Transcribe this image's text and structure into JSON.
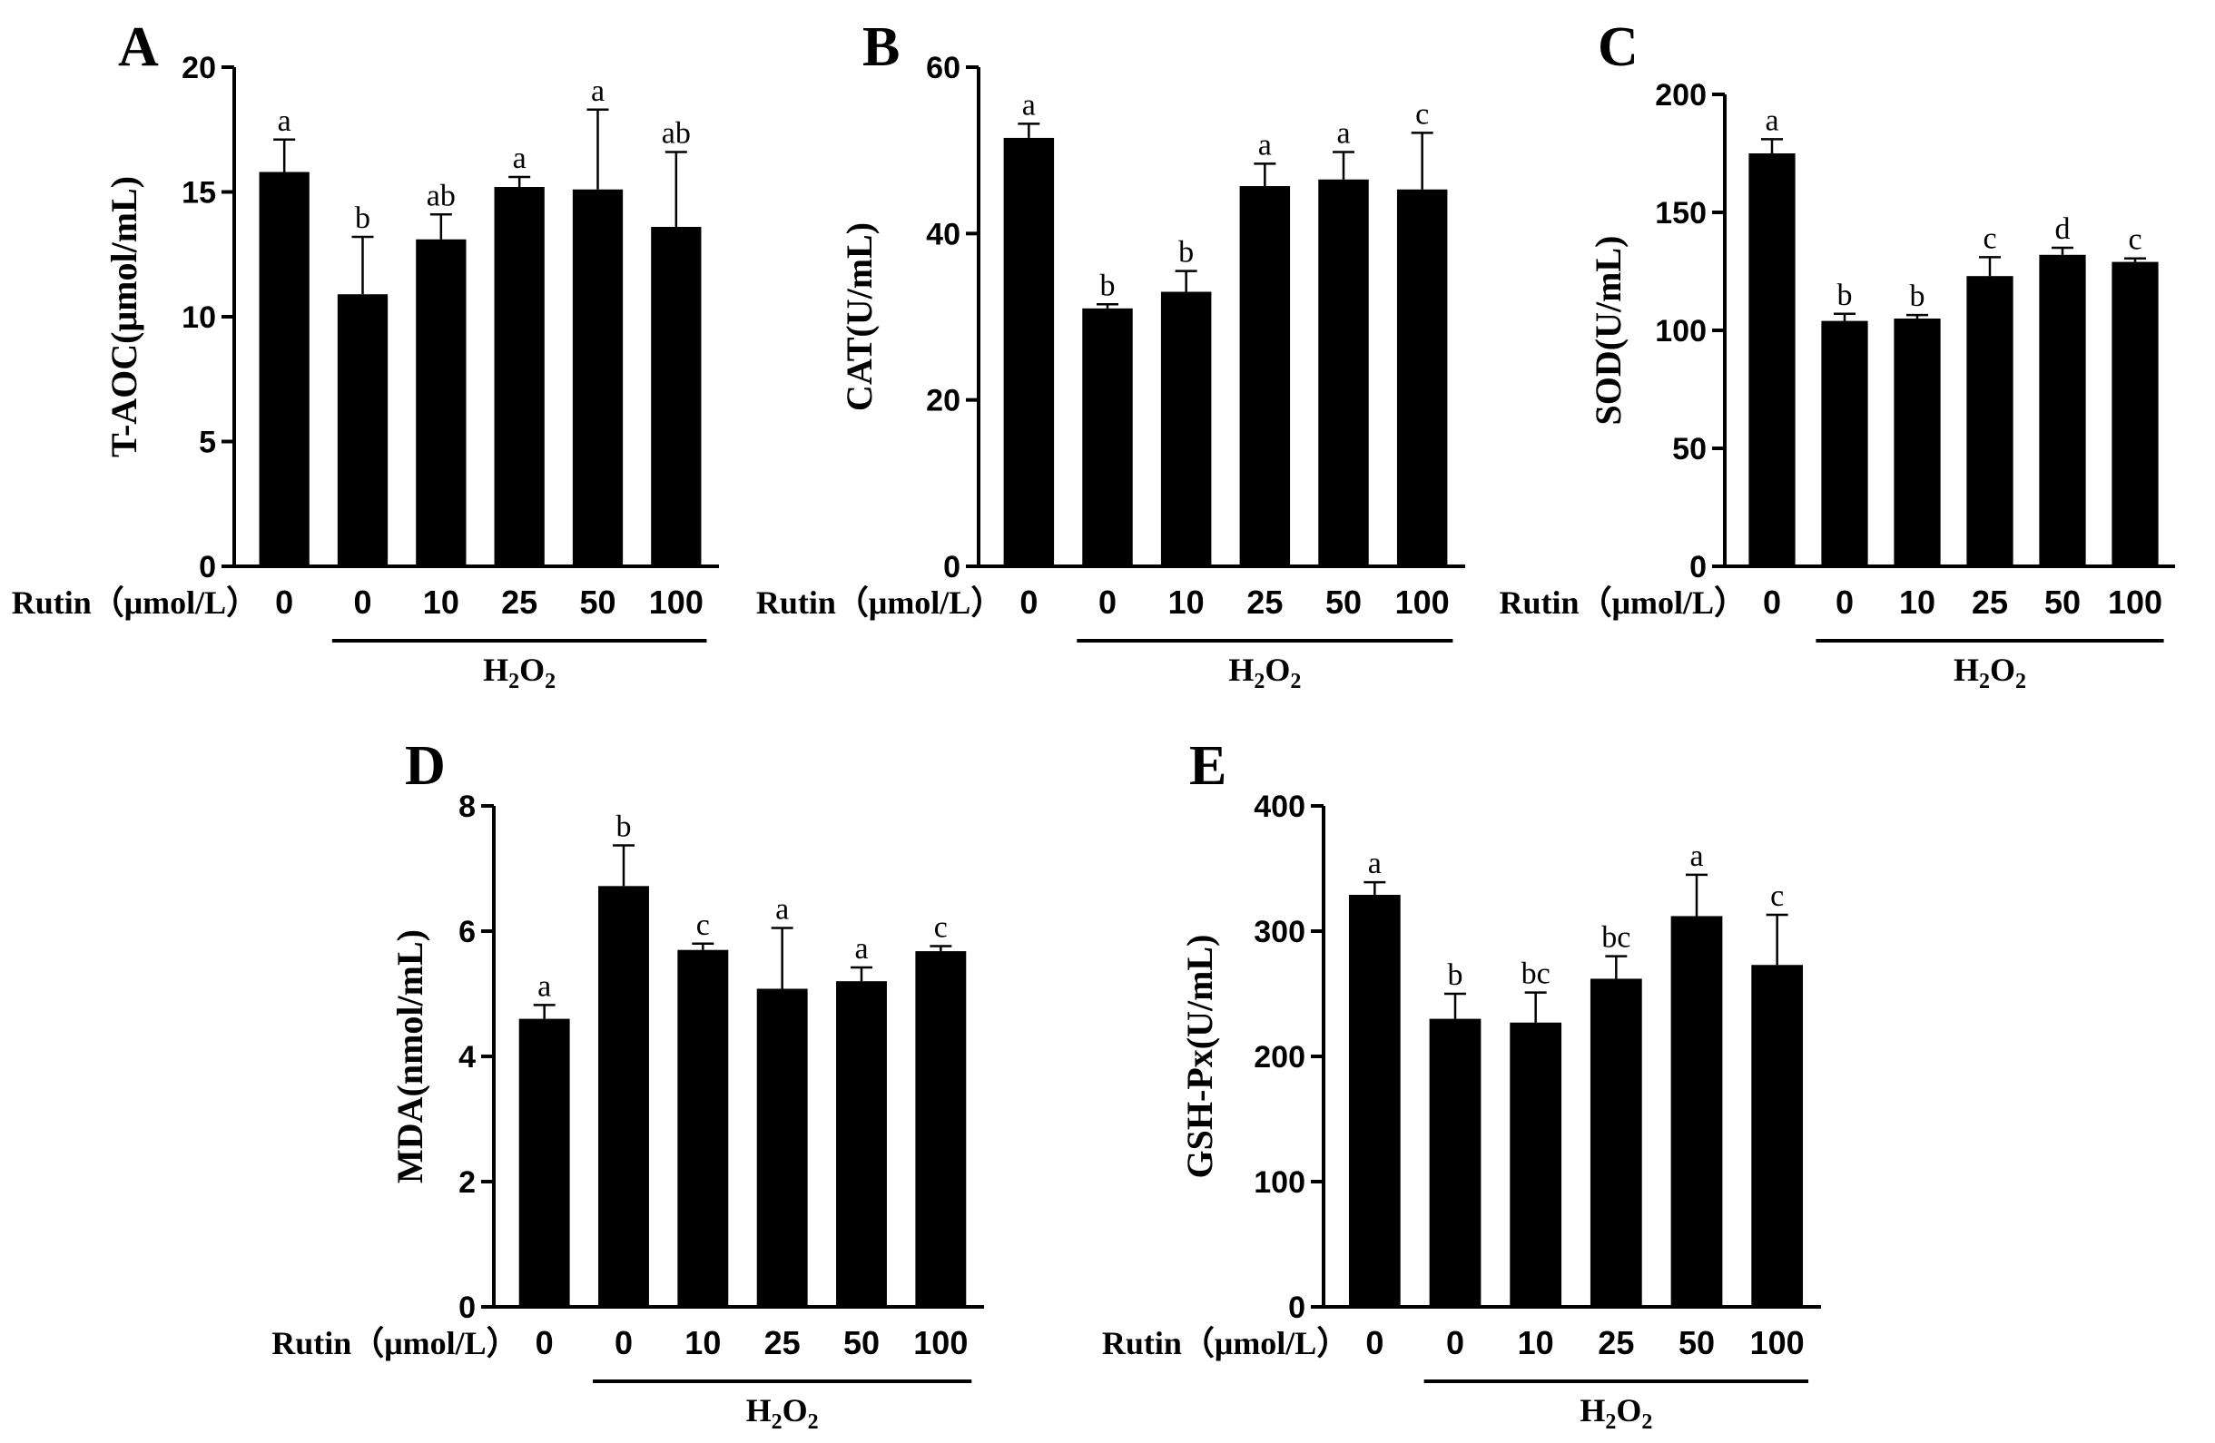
{
  "figure": {
    "x_row_label": "Rutin（μmol/L）",
    "group_label": {
      "main": "H",
      "sub1": "2",
      "mid": "O",
      "sub2": "2"
    }
  },
  "chart_data": [
    {
      "type": "bar",
      "panel": "A",
      "ylabel": "T-AOC(μmol/mL)",
      "ylim": [
        0,
        20
      ],
      "yticks": [
        0,
        5,
        10,
        15,
        20
      ],
      "categories": [
        "0",
        "0",
        "10",
        "25",
        "50",
        "100"
      ],
      "values": [
        15.8,
        10.9,
        13.1,
        15.2,
        15.1,
        13.6
      ],
      "errors": [
        1.3,
        2.3,
        1.0,
        0.4,
        3.2,
        3.0
      ],
      "significance": [
        "a",
        "b",
        "ab",
        "a",
        "a",
        "ab"
      ],
      "group_span": [
        1,
        5
      ]
    },
    {
      "type": "bar",
      "panel": "B",
      "ylabel": "CAT(U/mL)",
      "ylim": [
        0,
        60
      ],
      "yticks": [
        0,
        20,
        40,
        60
      ],
      "categories": [
        "0",
        "0",
        "10",
        "25",
        "50",
        "100"
      ],
      "values": [
        51.5,
        31.0,
        33.0,
        45.7,
        46.5,
        45.3
      ],
      "errors": [
        1.7,
        0.5,
        2.5,
        2.7,
        3.3,
        6.8
      ],
      "significance": [
        "a",
        "b",
        "b",
        "a",
        "a",
        "c"
      ],
      "group_span": [
        1,
        5
      ]
    },
    {
      "type": "bar",
      "panel": "C",
      "ylabel": "SOD(U/mL)",
      "ylim": [
        0,
        200
      ],
      "yticks": [
        0,
        50,
        100,
        150,
        200
      ],
      "categories": [
        "0",
        "0",
        "10",
        "25",
        "50",
        "100"
      ],
      "values": [
        175,
        104,
        105,
        123,
        132,
        129
      ],
      "errors": [
        6,
        3,
        1.5,
        8,
        3,
        1.5
      ],
      "significance": [
        "a",
        "b",
        "b",
        "c",
        "d",
        "c"
      ],
      "group_span": [
        1,
        5
      ]
    },
    {
      "type": "bar",
      "panel": "D",
      "ylabel": "MDA(nmol/mL)",
      "ylim": [
        0,
        8
      ],
      "yticks": [
        0,
        2,
        4,
        6,
        8
      ],
      "categories": [
        "0",
        "0",
        "10",
        "25",
        "50",
        "100"
      ],
      "values": [
        4.6,
        6.72,
        5.7,
        5.08,
        5.2,
        5.68
      ],
      "errors": [
        0.22,
        0.65,
        0.1,
        0.97,
        0.22,
        0.08
      ],
      "significance": [
        "a",
        "b",
        "c",
        "a",
        "a",
        "c"
      ],
      "group_span": [
        1,
        5
      ]
    },
    {
      "type": "bar",
      "panel": "E",
      "ylabel": "GSH-Px(U/mL)",
      "ylim": [
        0,
        400
      ],
      "yticks": [
        0,
        100,
        200,
        300,
        400
      ],
      "categories": [
        "0",
        "0",
        "10",
        "25",
        "50",
        "100"
      ],
      "values": [
        329,
        230,
        227,
        262,
        312,
        273
      ],
      "errors": [
        10,
        20,
        24,
        18,
        33,
        40
      ],
      "significance": [
        "a",
        "b",
        "bc",
        "bc",
        "a",
        "c"
      ],
      "group_span": [
        1,
        5
      ]
    }
  ]
}
